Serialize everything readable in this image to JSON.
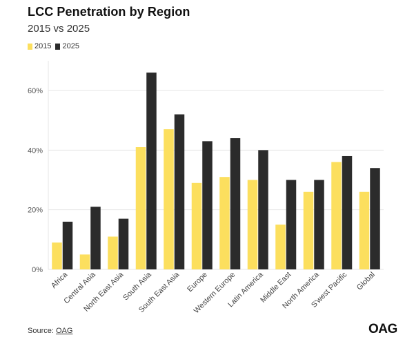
{
  "colors": {
    "series_2015": "#fcdf5e",
    "series_2025": "#2b2b2b",
    "grid": "#e6e6e6"
  },
  "chart_data": {
    "type": "bar",
    "title": "LCC Penetration by Region",
    "subtitle": "2015 vs 2025",
    "categories": [
      "Africa",
      "Central Asia",
      "North East Asia",
      "South Asia",
      "South East Asia",
      "Europe",
      "Western Europe",
      "Latin America",
      "Middle East",
      "North America",
      "S'west Pacific",
      "Global"
    ],
    "series": [
      {
        "name": "2015",
        "values": [
          9,
          5,
          11,
          41,
          47,
          29,
          31,
          30,
          15,
          26,
          36,
          26
        ]
      },
      {
        "name": "2025",
        "values": [
          16,
          21,
          17,
          66,
          52,
          43,
          44,
          40,
          30,
          30,
          38,
          34
        ]
      }
    ],
    "yticks": [
      "0%",
      "20%",
      "40%",
      "60%"
    ],
    "ylim": [
      0,
      70
    ],
    "legend": "top-left",
    "grid": true
  },
  "footer": {
    "source_label": "Source:",
    "source_link": "OAG",
    "logo_text": "OAG"
  }
}
